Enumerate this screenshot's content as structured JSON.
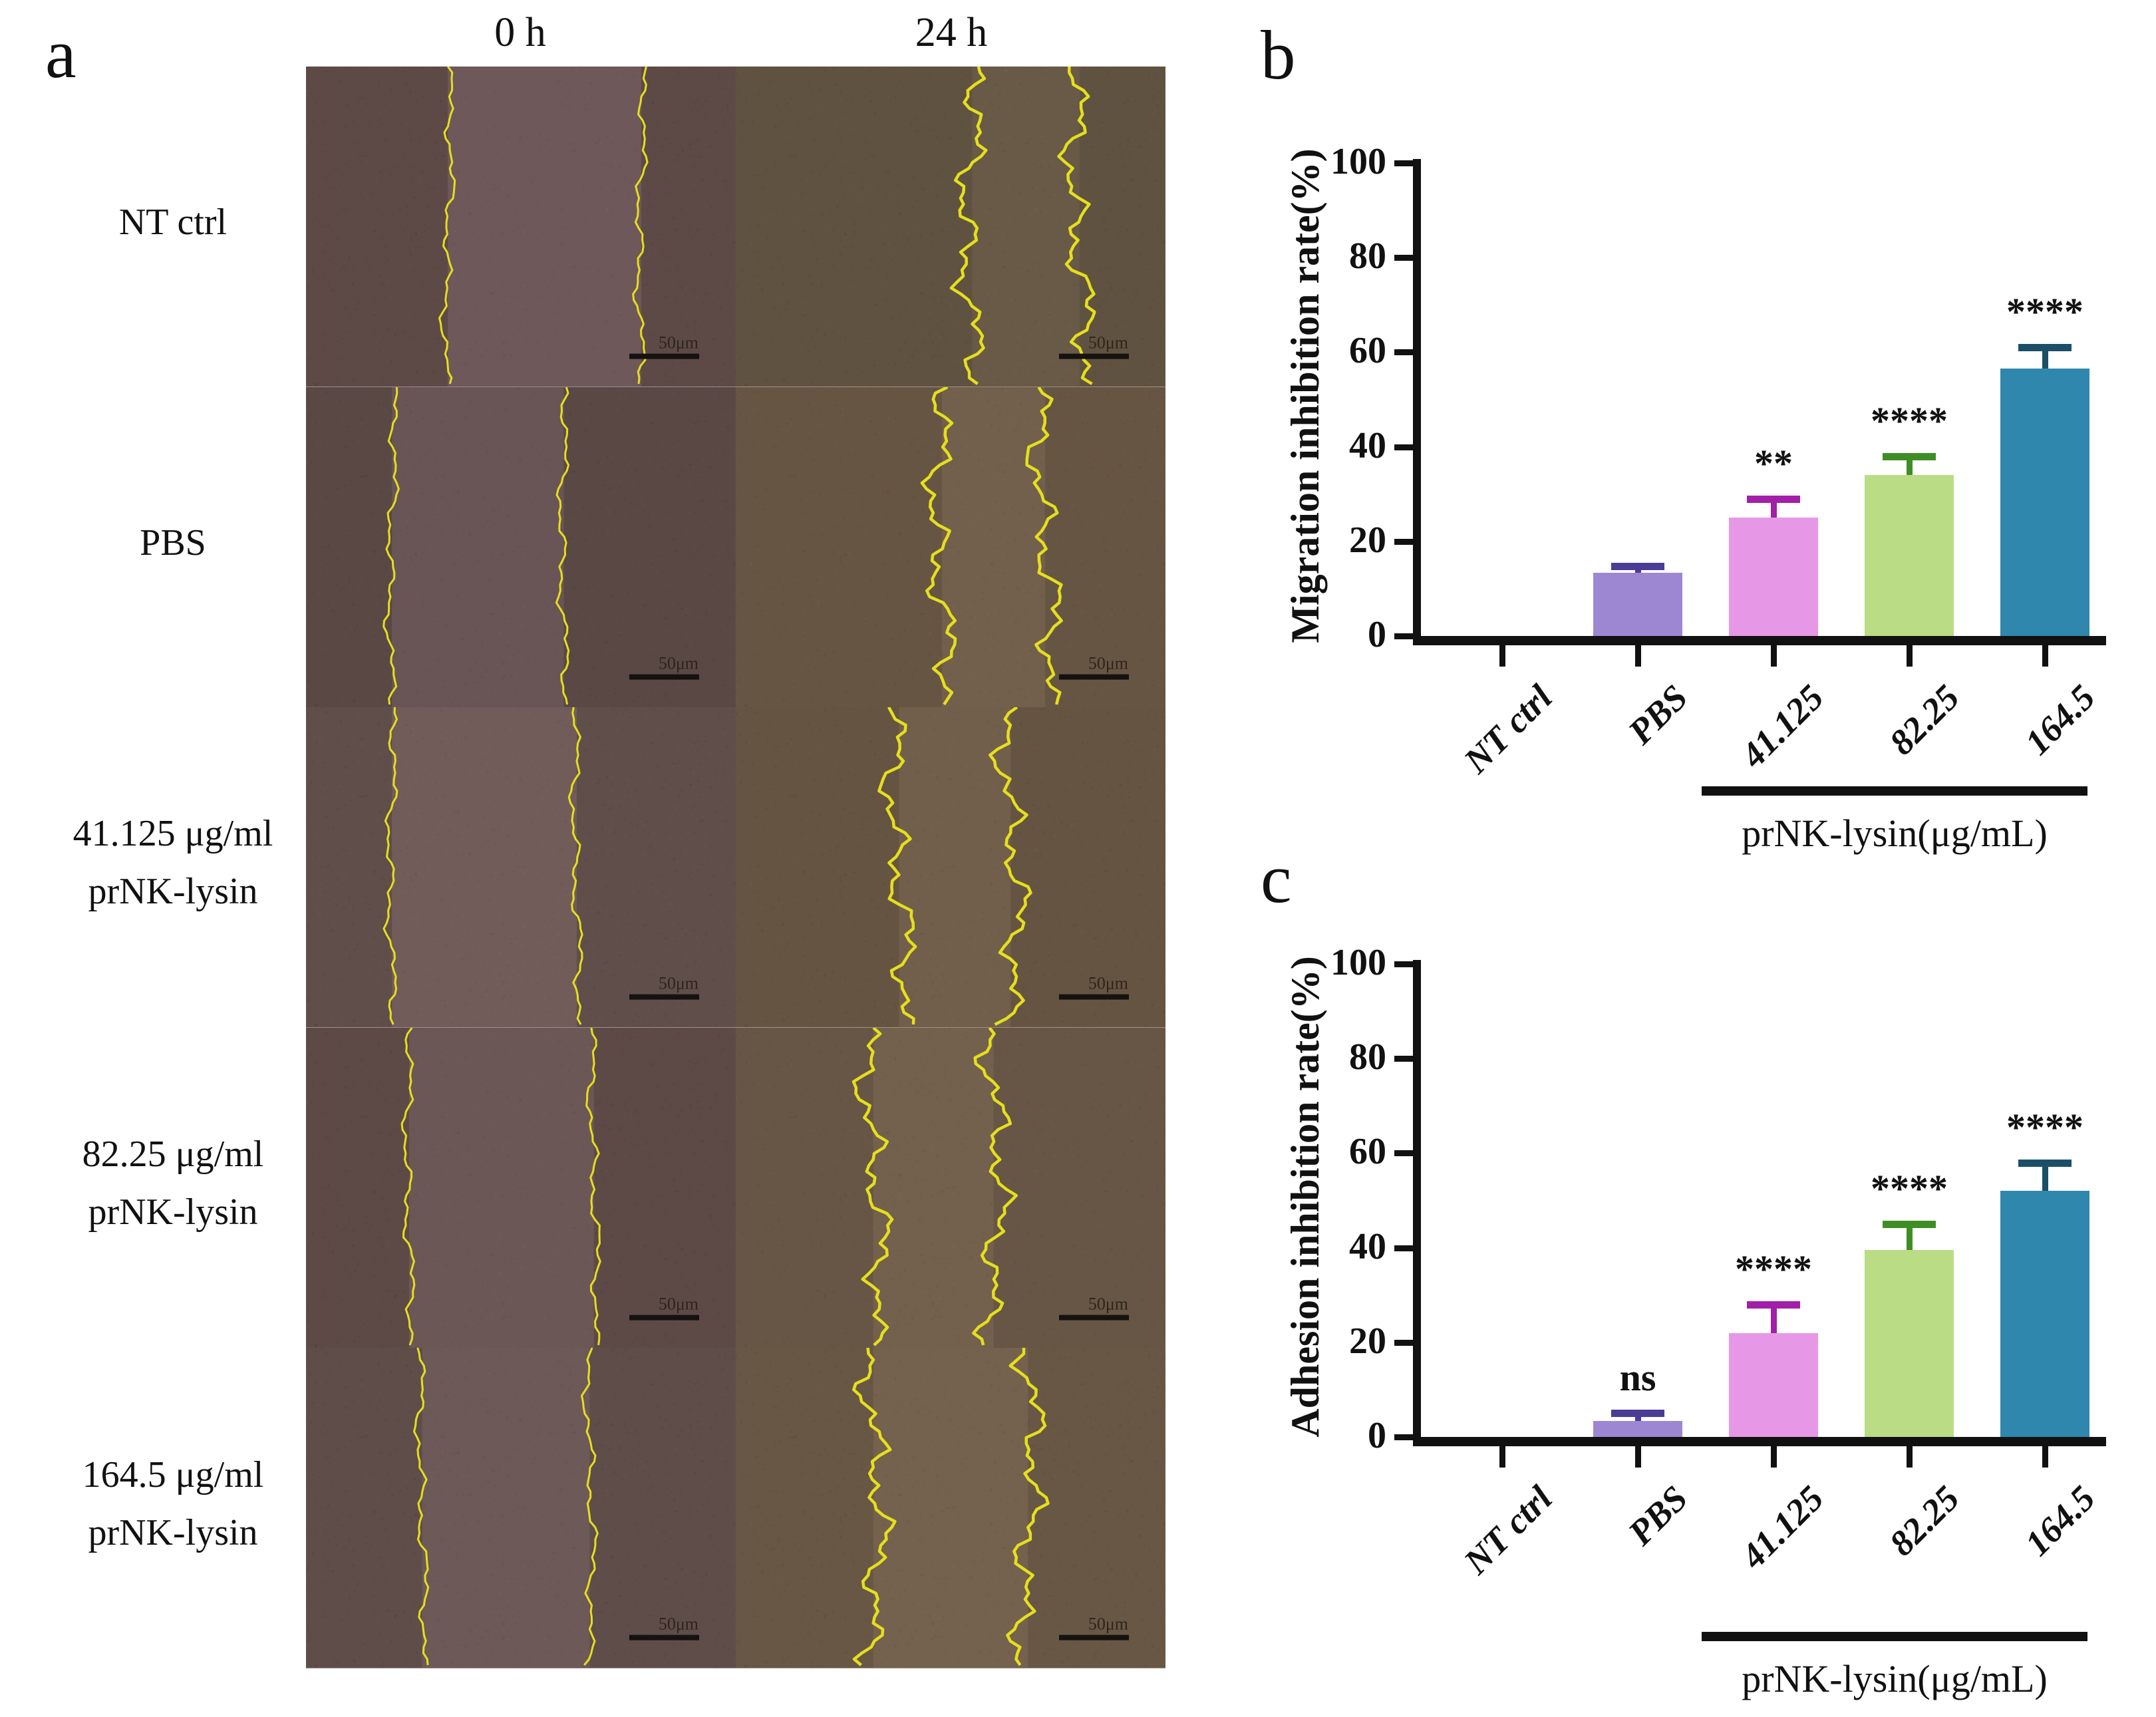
{
  "page": {
    "background": "#ffffff"
  },
  "panel_a": {
    "label": "a",
    "column_headers": [
      "0 h",
      "24 h"
    ],
    "scale_bar_label": "50μm",
    "trace_color": "#e4df1d",
    "rows": [
      {
        "label_lines": [
          "NT ctrl"
        ],
        "tiles": [
          {
            "cell": "#5e4543",
            "gap_bg": "#76595d",
            "edges": [
              0.33,
              0.78
            ],
            "wiggle": "low"
          },
          {
            "cell": "#635039",
            "gap_bg": "#6f5a43",
            "edges": [
              0.55,
              0.8
            ],
            "wiggle": "high"
          }
        ]
      },
      {
        "label_lines": [
          "PBS"
        ],
        "tiles": [
          {
            "cell": "#5a4240",
            "gap_bg": "#6f5458",
            "edges": [
              0.2,
              0.6
            ],
            "wiggle": "low"
          },
          {
            "cell": "#6c543e",
            "gap_bg": "#7c634a",
            "edges": [
              0.48,
              0.72
            ],
            "wiggle": "high"
          }
        ]
      },
      {
        "label_lines": [
          "41.125 μg/ml",
          "prNK-lysin"
        ],
        "tiles": [
          {
            "cell": "#634a47",
            "gap_bg": "#7a5e5e",
            "edges": [
              0.2,
              0.63
            ],
            "wiggle": "low"
          },
          {
            "cell": "#6a523c",
            "gap_bg": "#7a6148",
            "edges": [
              0.38,
              0.64
            ],
            "wiggle": "high"
          }
        ]
      },
      {
        "label_lines": [
          "82.25 μg/ml",
          "prNK-lysin"
        ],
        "tiles": [
          {
            "cell": "#5d4442",
            "gap_bg": "#725759",
            "edges": [
              0.24,
              0.67
            ],
            "wiggle": "low"
          },
          {
            "cell": "#6d5540",
            "gap_bg": "#7d644b",
            "edges": [
              0.32,
              0.6
            ],
            "wiggle": "high"
          }
        ]
      },
      {
        "label_lines": [
          "164.5 μg/ml",
          "prNK-lysin"
        ],
        "tiles": [
          {
            "cell": "#614846",
            "gap_bg": "#745a5a",
            "edges": [
              0.27,
              0.66
            ],
            "wiggle": "low"
          },
          {
            "cell": "#6e5641",
            "gap_bg": "#7e654c",
            "edges": [
              0.32,
              0.68
            ],
            "wiggle": "high"
          }
        ]
      }
    ]
  },
  "chart_data": [
    {
      "type": "bar",
      "panel_label": "b",
      "title": "",
      "xlabel": "",
      "ylabel": "Migration inhibition rate(%)",
      "ylim": [
        0,
        100
      ],
      "yticks": [
        0,
        20,
        40,
        60,
        80,
        100
      ],
      "grid": false,
      "legend": "none",
      "categories": [
        "NT ctrl",
        "PBS",
        "41.125",
        "82.25",
        "164.5"
      ],
      "values": [
        0,
        13.4,
        25,
        34,
        56.5
      ],
      "errors_plus": [
        0,
        1.3,
        4,
        4,
        4.5
      ],
      "significance": [
        "",
        "",
        "**",
        "****",
        "****"
      ],
      "bar_colors": [
        "#9d87d2",
        "#9d87d2",
        "#e698e6",
        "#b9dc85",
        "#3087ad"
      ],
      "error_colors": [
        "#4b3c97",
        "#4b3c97",
        "#a21fa8",
        "#3e8e25",
        "#1b4f67"
      ],
      "axis_color": "#111111",
      "bracket_label": "prNK-lysin(μg/mL)",
      "bracket_from_index": 2,
      "bracket_to_index": 4
    },
    {
      "type": "bar",
      "panel_label": "c",
      "title": "",
      "xlabel": "",
      "ylabel": "Adhesion inhibition rate(%)",
      "ylim": [
        0,
        100
      ],
      "yticks": [
        0,
        20,
        40,
        60,
        80,
        100
      ],
      "grid": false,
      "legend": "none",
      "categories": [
        "NT ctrl",
        "PBS",
        "41.125",
        "82.25",
        "164.5"
      ],
      "values": [
        0,
        3.4,
        22,
        39.5,
        52
      ],
      "errors_plus": [
        0,
        1.7,
        6,
        5.5,
        6
      ],
      "significance": [
        "",
        "ns",
        "****",
        "****",
        "****"
      ],
      "bar_colors": [
        "#9d87d2",
        "#9d87d2",
        "#e698e6",
        "#b9dc85",
        "#3087ad"
      ],
      "error_colors": [
        "#4b3c97",
        "#4b3c97",
        "#a21fa8",
        "#3e8e25",
        "#1b4f67"
      ],
      "axis_color": "#111111",
      "bracket_label": "prNK-lysin(μg/mL)",
      "bracket_from_index": 2,
      "bracket_to_index": 4
    }
  ]
}
